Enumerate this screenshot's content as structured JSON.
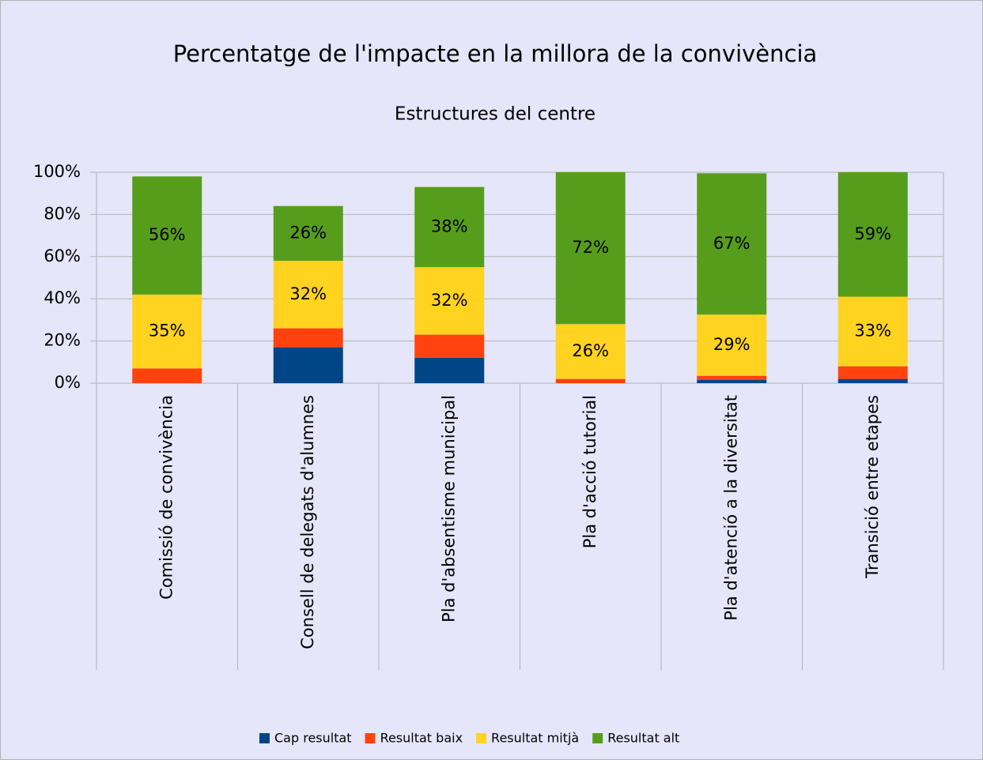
{
  "chart_data": {
    "type": "stacked_bar",
    "title": "Percentatge de l'impacte en la millora de la convivència",
    "subtitle": "Estructures del centre",
    "categories": [
      "Comissió de convivència",
      "Consell de delegats d'alumnes",
      "Pla d'absentisme municipal",
      "Pla d'acció tutorial",
      "Pla d'atenció a la diversitat",
      "Transició entre etapes"
    ],
    "series": [
      {
        "name": "Cap resultat",
        "color": "#004586",
        "values": [
          0,
          17,
          12,
          0,
          1.5,
          2
        ]
      },
      {
        "name": "Resultat baix",
        "color": "#ff420e",
        "values": [
          7,
          9,
          11,
          2,
          2,
          6
        ]
      },
      {
        "name": "Resultat mitjà",
        "color": "#ffd320",
        "values": [
          35,
          32,
          32,
          26,
          29,
          33
        ],
        "value_labels": [
          "35%",
          "32%",
          "32%",
          "26%",
          "29%",
          "33%"
        ]
      },
      {
        "name": "Resultat alt",
        "color": "#579d1c",
        "values": [
          56,
          26,
          38,
          72,
          67,
          59
        ],
        "value_labels": [
          "56%",
          "26%",
          "38%",
          "72%",
          "67%",
          "59%"
        ]
      }
    ],
    "ylim": [
      0,
      100
    ],
    "yticks": [
      {
        "value": 0,
        "label": "0%"
      },
      {
        "value": 20,
        "label": "20%"
      },
      {
        "value": 40,
        "label": "40%"
      },
      {
        "value": 60,
        "label": "60%"
      },
      {
        "value": 80,
        "label": "80%"
      },
      {
        "value": 100,
        "label": "100%"
      }
    ],
    "grid": true,
    "legend": "bottom"
  }
}
